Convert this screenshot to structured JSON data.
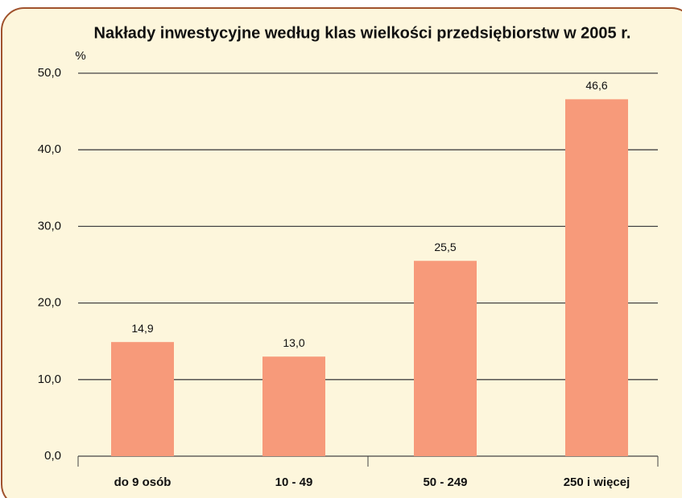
{
  "chart_data": {
    "type": "bar",
    "title": "Nakłady inwestycyjne według klas wielkości przedsiębiorstw w 2005 r.",
    "y_axis_label": "%",
    "categories": [
      "do 9 osób",
      "10 - 49",
      "50 - 249",
      "250 i więcej"
    ],
    "values": [
      14.9,
      13.0,
      25.5,
      46.6
    ],
    "value_labels": [
      "14,9",
      "13,0",
      "25,5",
      "46,6"
    ],
    "color": "#f79a7a",
    "ylim": [
      0,
      50
    ],
    "yticks": [
      {
        "value": 0,
        "label": "0,0"
      },
      {
        "value": 10,
        "label": "10,0"
      },
      {
        "value": 20,
        "label": "20,0"
      },
      {
        "value": 30,
        "label": "30,0"
      },
      {
        "value": 40,
        "label": "40,0"
      },
      {
        "value": 50,
        "label": "50,0"
      }
    ],
    "grid": true
  }
}
